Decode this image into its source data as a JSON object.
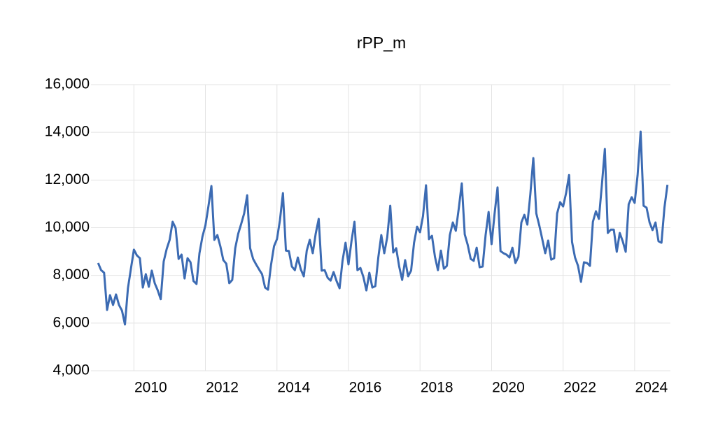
{
  "chart_data": {
    "type": "line",
    "title": "rPP_m",
    "color": "#3c6bb3",
    "grid": true,
    "xlim": [
      2008.8,
      2025.0
    ],
    "xticks": [
      2010,
      2012,
      2014,
      2016,
      2018,
      2020,
      2022,
      2024
    ],
    "ylim": [
      4000,
      16000
    ],
    "yticks": [
      {
        "value": 4000,
        "label": "4,000"
      },
      {
        "value": 6000,
        "label": "6,000"
      },
      {
        "value": 8000,
        "label": "8,000"
      },
      {
        "value": 10000,
        "label": "10,000"
      },
      {
        "value": 12000,
        "label": "12,000"
      },
      {
        "value": 14000,
        "label": "14,000"
      },
      {
        "value": 16000,
        "label": "16,000"
      }
    ],
    "x": [
      2009.0,
      2009.083,
      2009.167,
      2009.25,
      2009.333,
      2009.417,
      2009.5,
      2009.583,
      2009.667,
      2009.75,
      2009.833,
      2009.917,
      2010.0,
      2010.083,
      2010.167,
      2010.25,
      2010.333,
      2010.417,
      2010.5,
      2010.583,
      2010.667,
      2010.75,
      2010.833,
      2010.917,
      2011.0,
      2011.083,
      2011.167,
      2011.25,
      2011.333,
      2011.417,
      2011.5,
      2011.583,
      2011.667,
      2011.75,
      2011.833,
      2011.917,
      2012.0,
      2012.083,
      2012.167,
      2012.25,
      2012.333,
      2012.417,
      2012.5,
      2012.583,
      2012.667,
      2012.75,
      2012.833,
      2012.917,
      2013.0,
      2013.083,
      2013.167,
      2013.25,
      2013.333,
      2013.417,
      2013.5,
      2013.583,
      2013.667,
      2013.75,
      2013.833,
      2013.917,
      2014.0,
      2014.083,
      2014.167,
      2014.25,
      2014.333,
      2014.417,
      2014.5,
      2014.583,
      2014.667,
      2014.75,
      2014.833,
      2014.917,
      2015.0,
      2015.083,
      2015.167,
      2015.25,
      2015.333,
      2015.417,
      2015.5,
      2015.583,
      2015.667,
      2015.75,
      2015.833,
      2015.917,
      2016.0,
      2016.083,
      2016.167,
      2016.25,
      2016.333,
      2016.417,
      2016.5,
      2016.583,
      2016.667,
      2016.75,
      2016.833,
      2016.917,
      2017.0,
      2017.083,
      2017.167,
      2017.25,
      2017.333,
      2017.417,
      2017.5,
      2017.583,
      2017.667,
      2017.75,
      2017.833,
      2017.917,
      2018.0,
      2018.083,
      2018.167,
      2018.25,
      2018.333,
      2018.417,
      2018.5,
      2018.583,
      2018.667,
      2018.75,
      2018.833,
      2018.917,
      2019.0,
      2019.083,
      2019.167,
      2019.25,
      2019.333,
      2019.417,
      2019.5,
      2019.583,
      2019.667,
      2019.75,
      2019.833,
      2019.917,
      2020.0,
      2020.083,
      2020.167,
      2020.25,
      2020.333,
      2020.417,
      2020.5,
      2020.583,
      2020.667,
      2020.75,
      2020.833,
      2020.917,
      2021.0,
      2021.083,
      2021.167,
      2021.25,
      2021.333,
      2021.417,
      2021.5,
      2021.583,
      2021.667,
      2021.75,
      2021.833,
      2021.917,
      2022.0,
      2022.083,
      2022.167,
      2022.25,
      2022.333,
      2022.417,
      2022.5,
      2022.583,
      2022.667,
      2022.75,
      2022.833,
      2022.917,
      2023.0,
      2023.083,
      2023.167,
      2023.25,
      2023.333,
      2023.417,
      2023.5,
      2023.583,
      2023.667,
      2023.75,
      2023.833,
      2023.917,
      2024.0,
      2024.083,
      2024.167,
      2024.25,
      2024.333,
      2024.417,
      2024.5,
      2024.583,
      2024.667,
      2024.75,
      2024.833,
      2024.917
    ],
    "values": [
      8520,
      8220,
      8110,
      6550,
      7170,
      6760,
      7200,
      6760,
      6520,
      5940,
      7460,
      8280,
      9080,
      8840,
      8720,
      7490,
      8050,
      7520,
      8200,
      7670,
      7370,
      7000,
      8580,
      9110,
      9490,
      10250,
      9980,
      8690,
      8870,
      7870,
      8720,
      8550,
      7760,
      7640,
      8930,
      9630,
      10100,
      10890,
      11750,
      9490,
      9690,
      9220,
      8640,
      8490,
      7670,
      7810,
      9140,
      9750,
      10160,
      10600,
      11360,
      9140,
      8690,
      8460,
      8250,
      8050,
      7490,
      7400,
      8430,
      9220,
      9520,
      10310,
      11450,
      9040,
      9020,
      8370,
      8220,
      8750,
      8250,
      7960,
      9040,
      9490,
      8930,
      9750,
      10370,
      8200,
      8220,
      7900,
      7780,
      8140,
      7760,
      7460,
      8610,
      9370,
      8460,
      9430,
      10250,
      8220,
      8310,
      7930,
      7370,
      8110,
      7490,
      7550,
      8750,
      9690,
      8930,
      9600,
      10920,
      8960,
      9140,
      8370,
      7810,
      8640,
      7960,
      8200,
      9370,
      10040,
      9810,
      10490,
      11780,
      9520,
      9660,
      8780,
      8220,
      9040,
      8280,
      8400,
      9690,
      10220,
      9870,
      10810,
      11860,
      9720,
      9280,
      8690,
      8610,
      9160,
      8340,
      8370,
      9690,
      10660,
      9310,
      10570,
      11690,
      9020,
      8930,
      8870,
      8750,
      9160,
      8520,
      8780,
      10220,
      10540,
      10130,
      11390,
      12920,
      10600,
      10100,
      9520,
      8930,
      9460,
      8660,
      8720,
      10600,
      11070,
      10890,
      11450,
      12210,
      9400,
      8750,
      8400,
      7730,
      8550,
      8520,
      8400,
      10250,
      10690,
      10370,
      11780,
      13300,
      9780,
      9920,
      9920,
      8990,
      9780,
      9430,
      8990,
      10980,
      11280,
      11040,
      12210,
      14030,
      10920,
      10840,
      10220,
      9900,
      10220,
      9430,
      9370,
      10840,
      11800
    ]
  }
}
